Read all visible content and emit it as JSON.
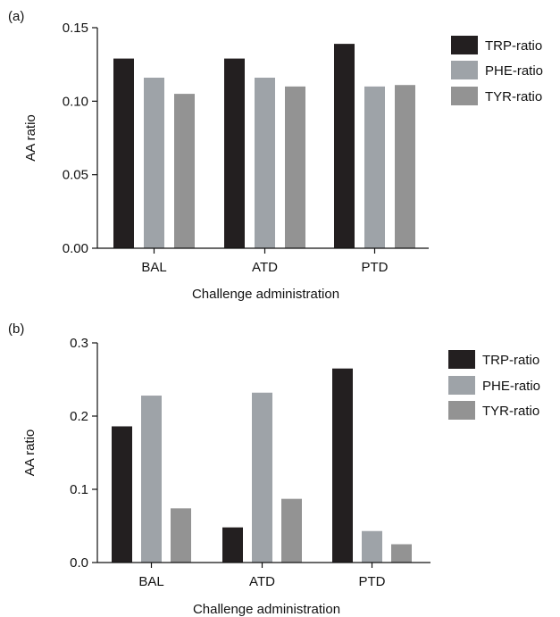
{
  "colors": {
    "trp": "#231f20",
    "phe": "#9ea3a8",
    "tyr": "#939393",
    "axis": "#111111"
  },
  "panels": [
    {
      "label": "(a)"
    },
    {
      "label": "(b)"
    }
  ],
  "chart_data": [
    {
      "type": "bar",
      "panel": "(a)",
      "categories": [
        "BAL",
        "ATD",
        "PTD"
      ],
      "series": [
        {
          "name": "TRP-ratio",
          "values": [
            0.129,
            0.129,
            0.139
          ]
        },
        {
          "name": "PHE-ratio",
          "values": [
            0.116,
            0.116,
            0.11
          ]
        },
        {
          "name": "TYR-ratio",
          "values": [
            0.105,
            0.11,
            0.111
          ]
        }
      ],
      "xlabel": "Challenge administration",
      "ylabel": "AA ratio",
      "ylim": [
        0,
        0.15
      ],
      "yticks": [
        "0.00",
        "0.05",
        "0.10",
        "0.15"
      ],
      "grid": false,
      "legend": "right"
    },
    {
      "type": "bar",
      "panel": "(b)",
      "categories": [
        "BAL",
        "ATD",
        "PTD"
      ],
      "series": [
        {
          "name": "TRP-ratio",
          "values": [
            0.186,
            0.048,
            0.265
          ]
        },
        {
          "name": "PHE-ratio",
          "values": [
            0.228,
            0.232,
            0.043
          ]
        },
        {
          "name": "TYR-ratio",
          "values": [
            0.074,
            0.087,
            0.025
          ]
        }
      ],
      "xlabel": "Challenge administration",
      "ylabel": "AA ratio",
      "ylim": [
        0,
        0.3
      ],
      "yticks": [
        "0.0",
        "0.1",
        "0.2",
        "0.3"
      ],
      "grid": false,
      "legend": "right"
    }
  ]
}
